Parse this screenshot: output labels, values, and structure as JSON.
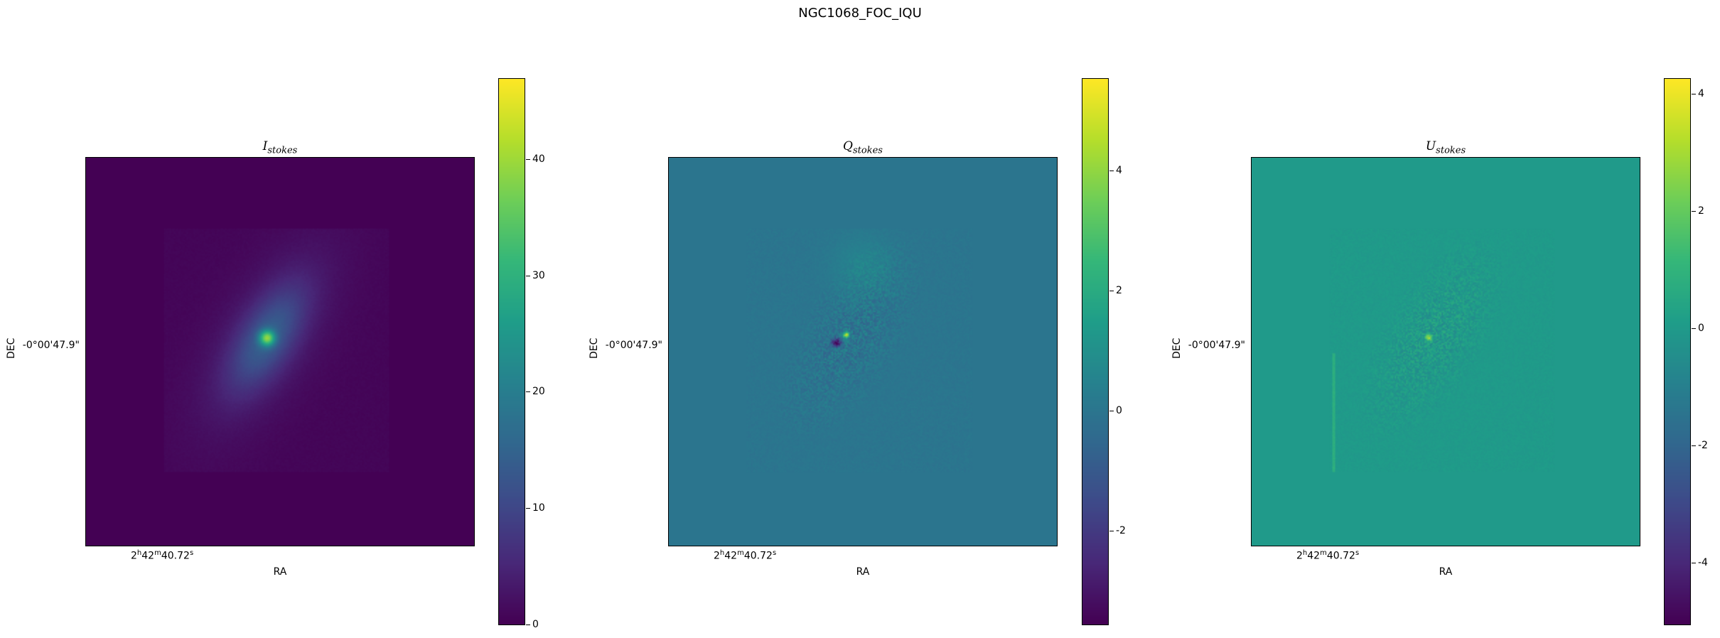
{
  "figure_title": "NGC1068_FOC_IQU",
  "chart_data": [
    {
      "type": "heatmap",
      "title_main": "I",
      "title_sub": "stokes",
      "xlabel": "RA",
      "ylabel": "DEC",
      "x_tick_label": {
        "h": "2",
        "m": "42",
        "s": "40.72"
      },
      "y_tick_label": "-0°00'47.9\"",
      "colormap": "viridis",
      "clim": [
        0,
        47
      ],
      "colorbar_ticks": [
        0,
        10,
        20,
        30,
        40
      ],
      "background_value": 0
    },
    {
      "type": "heatmap",
      "title_main": "Q",
      "title_sub": "stokes",
      "xlabel": "RA",
      "ylabel": "DEC",
      "x_tick_label": {
        "h": "2",
        "m": "42",
        "s": "40.72"
      },
      "y_tick_label": "-0°00'47.9\"",
      "colormap": "viridis",
      "clim": [
        -3.56,
        5.55
      ],
      "colorbar_ticks": [
        -2,
        0,
        2,
        4
      ],
      "background_value": 0
    },
    {
      "type": "heatmap",
      "title_main": "U",
      "title_sub": "stokes",
      "xlabel": "RA",
      "ylabel": "DEC",
      "x_tick_label": {
        "h": "2",
        "m": "42",
        "s": "40.72"
      },
      "y_tick_label": "-0°00'47.9\"",
      "colormap": "viridis",
      "clim": [
        -5.05,
        4.28
      ],
      "colorbar_ticks": [
        -4,
        -2,
        0,
        2,
        4
      ],
      "background_value": 0
    }
  ]
}
